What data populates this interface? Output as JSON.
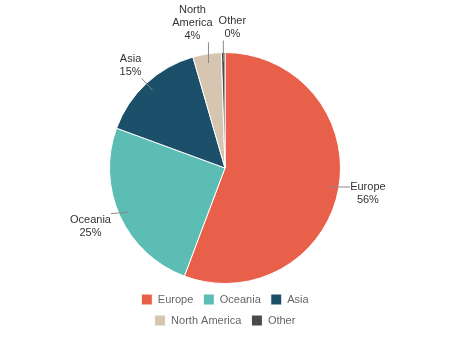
{
  "chart_data": {
    "type": "pie",
    "categories": [
      "Europe",
      "Oceania",
      "Asia",
      "North America",
      "Other"
    ],
    "values": [
      56,
      25,
      15,
      4,
      0.5
    ],
    "value_labels": [
      "Europe\n56%",
      "Oceania\n25%",
      "Asia\n15%",
      "North\nAmerica\n4%",
      "Other\n0%"
    ],
    "colors": [
      "#E8604A",
      "#5BBDB3",
      "#1B4F6A",
      "#D6C5B0",
      "#4A4A4A"
    ],
    "data_labels": true,
    "legend": "bottom"
  }
}
